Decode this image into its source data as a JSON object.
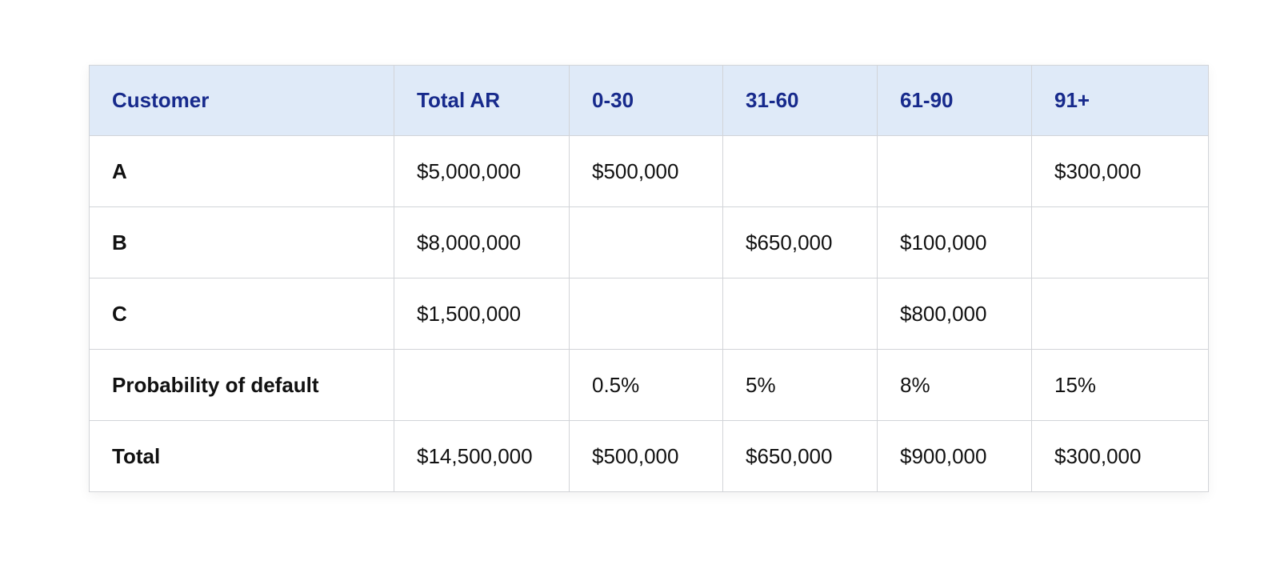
{
  "table": {
    "columns": [
      "Customer",
      "Total AR",
      "0-30",
      "31-60",
      "61-90",
      "91+"
    ],
    "rows": [
      {
        "label": "A",
        "cells": [
          "$5,000,000",
          "$500,000",
          "",
          "",
          "$300,000"
        ]
      },
      {
        "label": "B",
        "cells": [
          "$8,000,000",
          "",
          "$650,000",
          "$100,000",
          ""
        ]
      },
      {
        "label": "C",
        "cells": [
          "$1,500,000",
          "",
          "",
          "$800,000",
          ""
        ]
      },
      {
        "label": "Probability of default",
        "cells": [
          "",
          "0.5%",
          "5%",
          "8%",
          "15%"
        ]
      },
      {
        "label": "Total",
        "cells": [
          "$14,500,000",
          "$500,000",
          "$650,000",
          "$900,000",
          "$300,000"
        ]
      }
    ]
  },
  "colors": {
    "header_bg": "#dfeaf8",
    "header_text": "#172a8c",
    "border": "#d2d4d8",
    "body_text": "#111111"
  }
}
